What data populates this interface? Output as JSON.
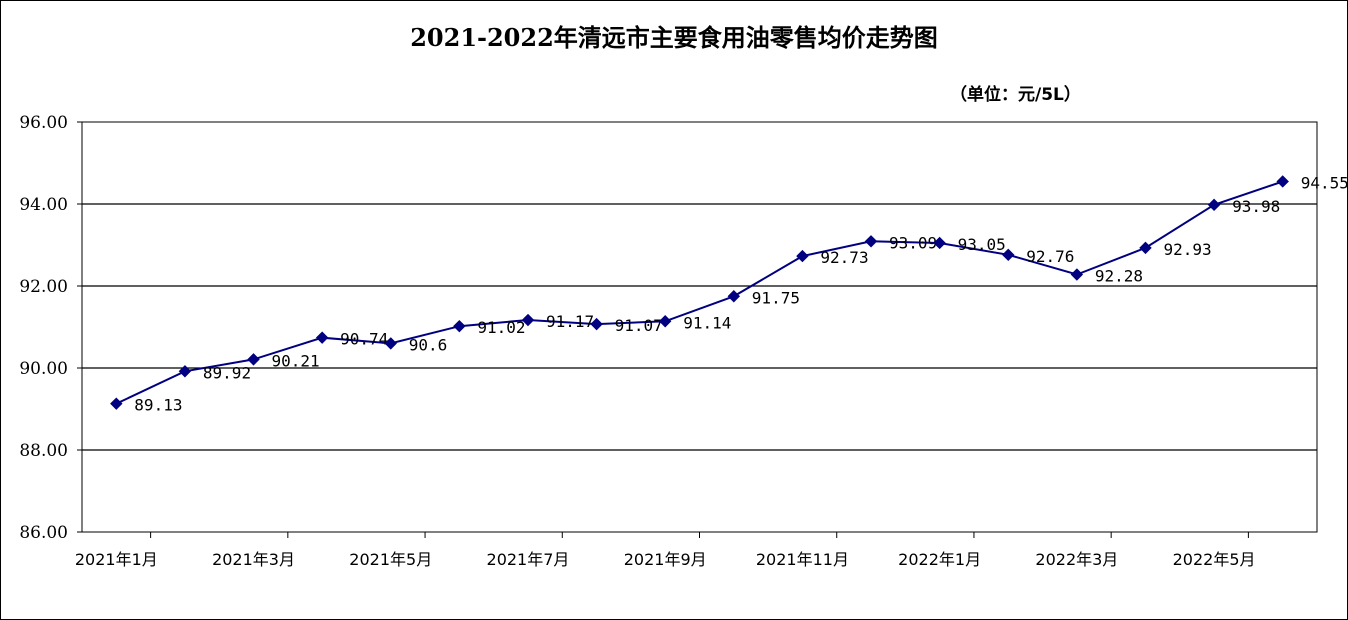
{
  "chart_data": {
    "type": "line",
    "title": "2021-2022年清远市主要食用油零售均价走势图",
    "unit_label": "（单位：元/5L）",
    "ylim": [
      86,
      96
    ],
    "yticks": [
      "96.00",
      "94.00",
      "92.00",
      "90.00",
      "88.00",
      "86.00"
    ],
    "ytick_values": [
      96,
      94,
      92,
      90,
      88,
      86
    ],
    "x_tick_labels": [
      "2021年1月",
      "2021年3月",
      "2021年5月",
      "2021年7月",
      "2021年9月",
      "2021年11月",
      "2022年1月",
      "2022年3月",
      "2022年5月"
    ],
    "grid": true,
    "legend": "none",
    "series": [
      {
        "values": [
          89.13,
          89.92,
          90.21,
          90.74,
          90.6,
          91.02,
          91.17,
          91.07,
          91.14,
          91.75,
          92.73,
          93.09,
          93.05,
          92.76,
          92.28,
          92.93,
          93.98,
          94.55
        ],
        "labels": [
          "89.13",
          "89.92",
          "90.21",
          "90.74",
          "90.6",
          "91.02",
          "91.17",
          "91.07",
          "91.14",
          "91.75",
          "92.73",
          "93.09",
          "93.05",
          "92.76",
          "92.28",
          "92.93",
          "93.98",
          "94.55"
        ],
        "color": "#000080"
      }
    ]
  }
}
